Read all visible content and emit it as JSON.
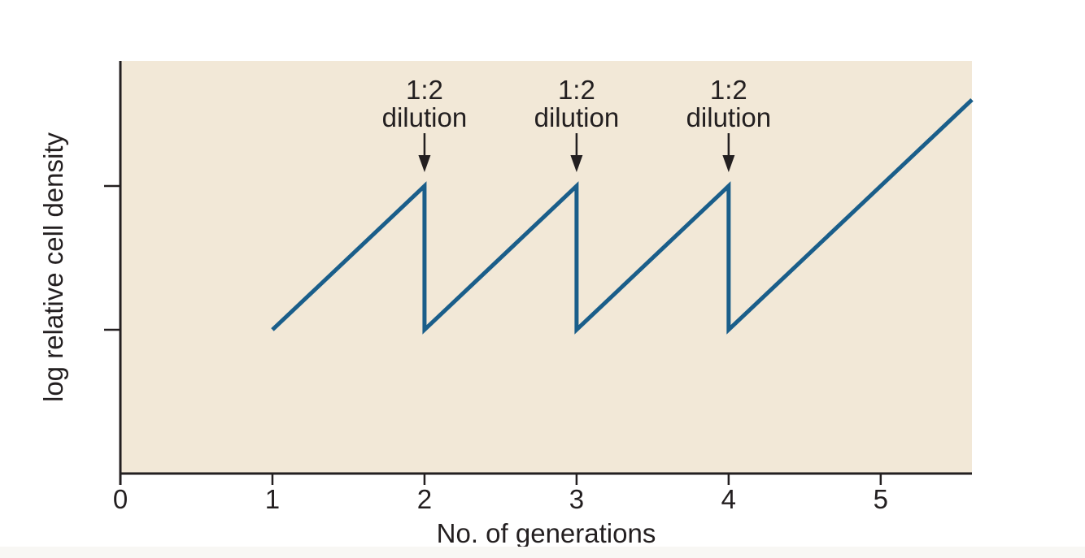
{
  "figure": {
    "colors": {
      "background": "#ffffff",
      "plot_background": "#f2e8d7",
      "axis": "#231f20",
      "series_line": "#1a5e8a",
      "annotation": "#231f20",
      "bottom_strip": "#f8f7f4"
    }
  },
  "chart_data": {
    "type": "line",
    "title": "",
    "xlabel": "No. of generations",
    "ylabel": "log relative cell density",
    "xlim": [
      0,
      5.6
    ],
    "ylim": [
      -1,
      1.87
    ],
    "grid": false,
    "legend": null,
    "x_ticks": [
      {
        "value": 0,
        "label": "0"
      },
      {
        "value": 1,
        "label": "1"
      },
      {
        "value": 2,
        "label": "2"
      },
      {
        "value": 3,
        "label": "3"
      },
      {
        "value": 4,
        "label": "4"
      },
      {
        "value": 5,
        "label": "5"
      }
    ],
    "y_ticks": [
      {
        "value": 0,
        "label": ""
      },
      {
        "value": 1,
        "label": ""
      }
    ],
    "series": [
      {
        "points": [
          [
            1,
            0
          ],
          [
            2,
            1
          ],
          [
            2,
            0
          ],
          [
            3,
            1
          ],
          [
            3,
            0
          ],
          [
            4,
            1
          ],
          [
            4,
            0
          ],
          [
            5.6,
            1.6
          ]
        ]
      }
    ],
    "annotations": [
      {
        "x": 2,
        "lines": [
          "1:2",
          "dilution"
        ],
        "arrow": "down"
      },
      {
        "x": 3,
        "lines": [
          "1:2",
          "dilution"
        ],
        "arrow": "down"
      },
      {
        "x": 4,
        "lines": [
          "1:2",
          "dilution"
        ],
        "arrow": "down"
      }
    ]
  }
}
